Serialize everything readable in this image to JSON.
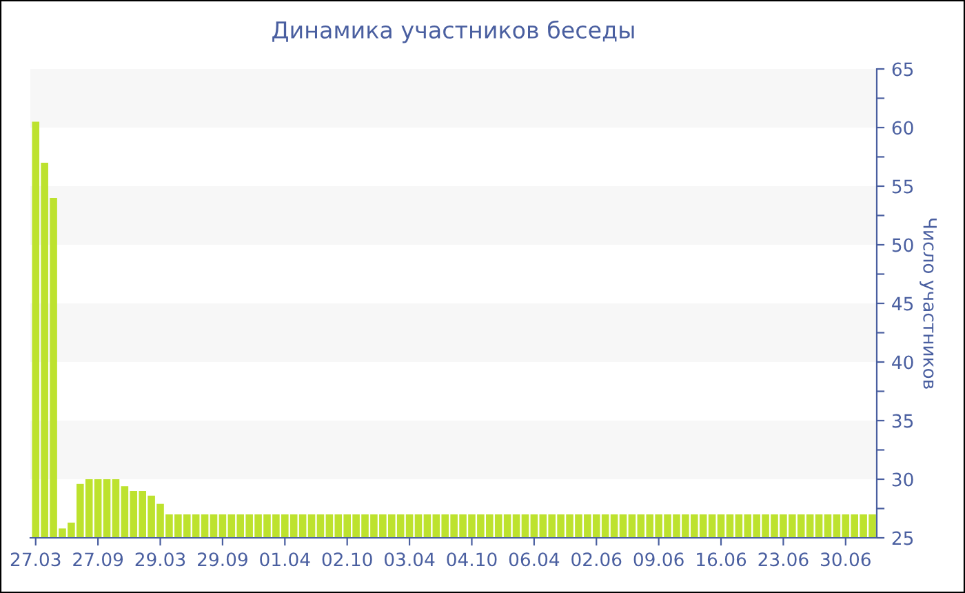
{
  "chart_data": {
    "type": "bar",
    "title": "Динамика участников беседы",
    "ylabel": "Число участников",
    "categories": [
      "27.03",
      null,
      null,
      null,
      null,
      null,
      null,
      "27.09",
      null,
      null,
      null,
      null,
      null,
      null,
      "29.03",
      null,
      null,
      null,
      null,
      null,
      null,
      "29.09",
      null,
      null,
      null,
      null,
      null,
      null,
      "01.04",
      null,
      null,
      null,
      null,
      null,
      null,
      "02.10",
      null,
      null,
      null,
      null,
      null,
      null,
      "03.04",
      null,
      null,
      null,
      null,
      null,
      null,
      "04.10",
      null,
      null,
      null,
      null,
      null,
      null,
      "06.04",
      null,
      null,
      null,
      null,
      null,
      null,
      "02.06",
      null,
      null,
      null,
      null,
      null,
      null,
      "09.06",
      null,
      null,
      null,
      null,
      null,
      null,
      "16.06",
      null,
      null,
      null,
      null,
      null,
      null,
      "23.06",
      null,
      null,
      null,
      null,
      null,
      null,
      "30.06",
      null,
      null,
      null
    ],
    "values": [
      60.5,
      57,
      54,
      25.8,
      26.3,
      29.6,
      30,
      30,
      30,
      30,
      29.4,
      29,
      29,
      28.6,
      27.9,
      27,
      27,
      27,
      27,
      27,
      27,
      27,
      27,
      27,
      27,
      27,
      27,
      27,
      27,
      27,
      27,
      27,
      27,
      27,
      27,
      27,
      27,
      27,
      27,
      27,
      27,
      27,
      27,
      27,
      27,
      27,
      27,
      27,
      27,
      27,
      27,
      27,
      27,
      27,
      27,
      27,
      27,
      27,
      27,
      27,
      27,
      27,
      27,
      27,
      27,
      27,
      27,
      27,
      27,
      27,
      27,
      27,
      27,
      27,
      27,
      27,
      27,
      27,
      27,
      27,
      27,
      27,
      27,
      27,
      27,
      27,
      27,
      27,
      27,
      27,
      27,
      27,
      27,
      27,
      27
    ],
    "color": "#bde22e",
    "ylim": [
      25,
      65
    ],
    "yticks": [
      25,
      {
        "value": 27.5,
        "label": null
      },
      30,
      {
        "value": 32.5,
        "label": null
      },
      35,
      {
        "value": 37.5,
        "label": null
      },
      40,
      {
        "value": 42.5,
        "label": null
      },
      45,
      {
        "value": 47.5,
        "label": null
      },
      50,
      {
        "value": 52.5,
        "label": null
      },
      55,
      {
        "value": 57.5,
        "label": null
      },
      60,
      {
        "value": 62.5,
        "label": null
      },
      65
    ],
    "bands": [
      {
        "axis": "y",
        "from": 30,
        "to": 35,
        "color": "#f7f7f7"
      },
      {
        "axis": "y",
        "from": 40,
        "to": 45,
        "color": "#f7f7f7"
      },
      {
        "axis": "y",
        "from": 50,
        "to": 55,
        "color": "#f7f7f7"
      },
      {
        "axis": "y",
        "from": 60,
        "to": 65,
        "color": "#f7f7f7"
      }
    ],
    "grid": false,
    "legend": false
  }
}
